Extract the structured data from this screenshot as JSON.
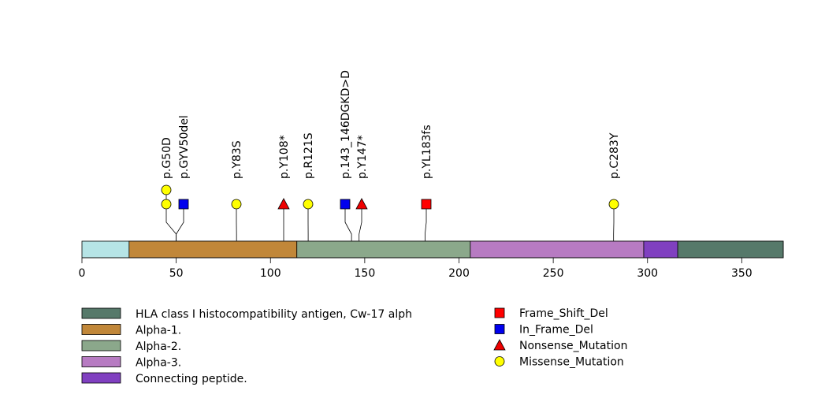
{
  "chart_data": {
    "type": "lollipop",
    "title": "",
    "xlabel": "",
    "ylabel": "",
    "protein_length": 372,
    "xlim": [
      0,
      372
    ],
    "x_ticks": [
      0,
      50,
      100,
      150,
      200,
      250,
      300,
      350
    ],
    "colors": {
      "background": "#ffffff",
      "protein_base": "#b6e4e6",
      "mutation_types": {
        "Frame_Shift_Del": "#ff0000",
        "In_Frame_Del": "#0000ee",
        "Nonsense_Mutation": "#ee0000",
        "Missense_Mutation": "#ffff00"
      }
    },
    "domains": [
      {
        "name": "HLA class I histocompatibility antigen, Cw-17 alph",
        "start": 316,
        "end": 372,
        "color": "#56796a"
      },
      {
        "name": "Alpha-1.",
        "start": 25,
        "end": 114,
        "color": "#c18739"
      },
      {
        "name": "Alpha-2.",
        "start": 114,
        "end": 206,
        "color": "#8ba88b"
      },
      {
        "name": "Alpha-3.",
        "start": 206,
        "end": 298,
        "color": "#b77bc2"
      },
      {
        "name": "Connecting peptide.",
        "start": 298,
        "end": 316,
        "color": "#8040c0"
      }
    ],
    "mutations": [
      {
        "label": "p.G50D",
        "position": 50,
        "count": 2,
        "type": "Missense_Mutation"
      },
      {
        "label": "p.GYV50del",
        "position": 50,
        "count": 1,
        "type": "In_Frame_Del"
      },
      {
        "label": "p.Y83S",
        "position": 82,
        "count": 1,
        "type": "Missense_Mutation"
      },
      {
        "label": "p.Y108*",
        "position": 107,
        "count": 1,
        "type": "Nonsense_Mutation"
      },
      {
        "label": "p.R121S",
        "position": 120,
        "count": 1,
        "type": "Missense_Mutation"
      },
      {
        "label": "p.143_146DGKD>D",
        "position": 143,
        "count": 1,
        "type": "In_Frame_Del"
      },
      {
        "label": "p.Y147*",
        "position": 147,
        "count": 1,
        "type": "Nonsense_Mutation"
      },
      {
        "label": "p.YL183fs",
        "position": 182,
        "count": 1,
        "type": "Frame_Shift_Del"
      },
      {
        "label": "p.C283Y",
        "position": 282,
        "count": 1,
        "type": "Missense_Mutation"
      }
    ],
    "legend": {
      "placement": "bottom",
      "domain_entries": [
        "HLA class I histocompatibility antigen, Cw-17 alph",
        "Alpha-1.",
        "Alpha-2.",
        "Alpha-3.",
        "Connecting peptide."
      ],
      "mutation_entries": [
        {
          "label": "Frame_Shift_Del",
          "shape": "square"
        },
        {
          "label": "In_Frame_Del",
          "shape": "square"
        },
        {
          "label": "Nonsense_Mutation",
          "shape": "triangle"
        },
        {
          "label": "Missense_Mutation",
          "shape": "circle"
        }
      ]
    }
  }
}
